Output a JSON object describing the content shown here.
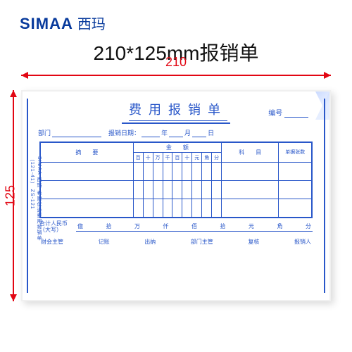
{
  "brand": {
    "en": "SIMAA",
    "cn": "西玛",
    "color": "#083a9c"
  },
  "heading": "210*125mm报销单",
  "dimensions": {
    "width_label": "210",
    "height_label": "125",
    "arrow_color": "#e20613"
  },
  "form": {
    "ink_color": "#2957c9",
    "title": "费用报销单",
    "serial_label": "编号",
    "side_text": "SIMAA 西玛 希财优选费用报销单（121-41） ZS-121",
    "meta": {
      "department_label": "部门",
      "date_label": "报销日期：",
      "year": "年",
      "month": "月",
      "day": "日"
    },
    "columns": {
      "summary": "摘　　要",
      "amount": "金　　额",
      "subject": "科　　目",
      "receipts": "单据张数",
      "amount_digits": [
        "百",
        "十",
        "万",
        "千",
        "百",
        "十",
        "元",
        "角",
        "分"
      ]
    },
    "blank_rows": 3,
    "total": {
      "label_line1": "合计人民币",
      "label_line2": "（大写）",
      "units": [
        "億",
        "拾",
        "万",
        "仟",
        "佰",
        "拾",
        "元",
        "角",
        "分"
      ]
    },
    "signatures": [
      "财会主管",
      "记账",
      "出纳",
      "部门主管",
      "复核",
      "报销人"
    ]
  }
}
